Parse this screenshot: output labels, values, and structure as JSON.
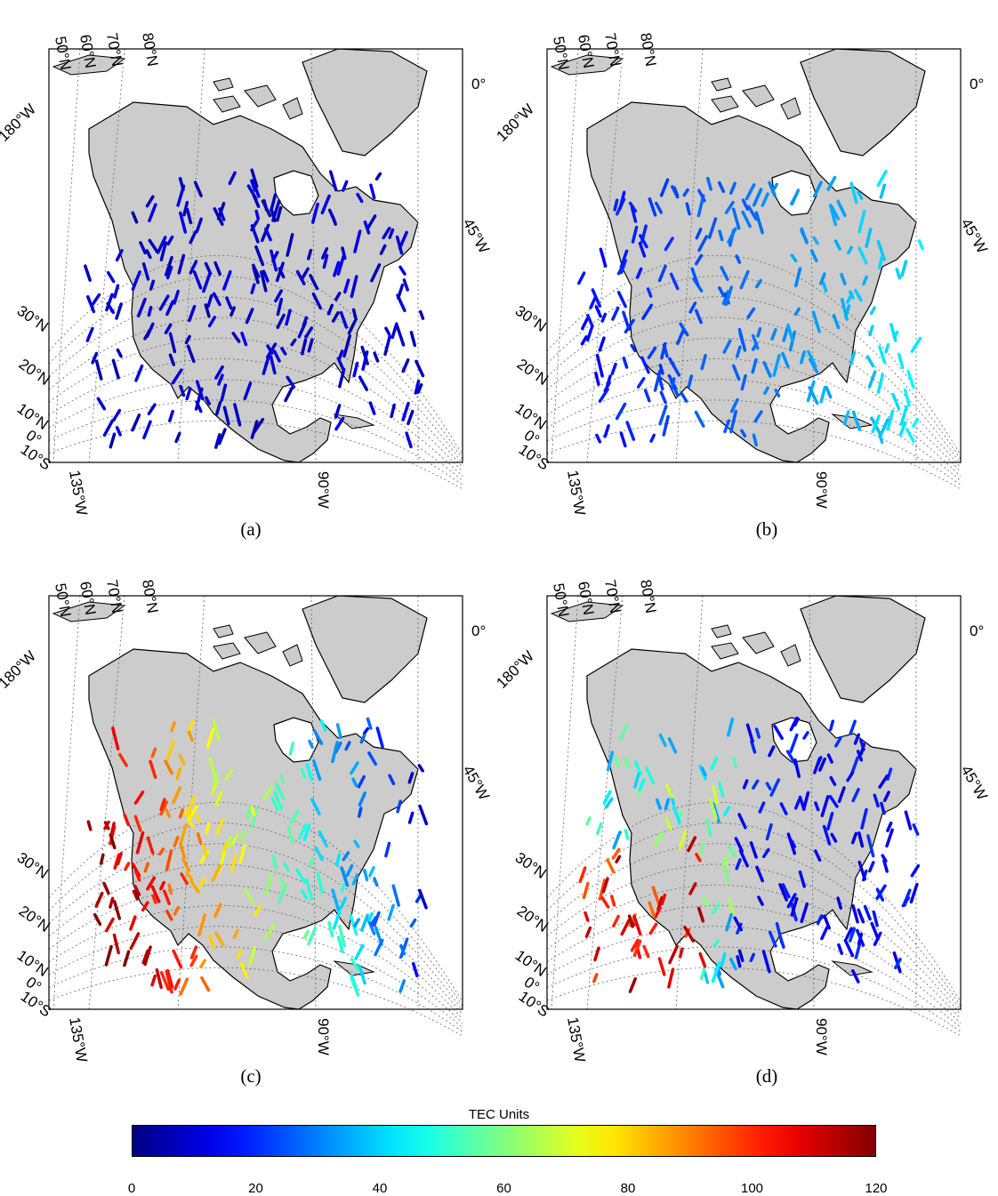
{
  "panels": [
    {
      "id": "a",
      "label": "(a)",
      "mode": "a"
    },
    {
      "id": "b",
      "label": "(b)",
      "mode": "b"
    },
    {
      "id": "c",
      "label": "(c)",
      "mode": "c"
    },
    {
      "id": "d",
      "label": "(d)",
      "mode": "d"
    }
  ],
  "grid_labels": {
    "lat_top": [
      "50°N",
      "60°N",
      "70°N",
      "80°N"
    ],
    "lat_left": [
      "30°N",
      "20°N",
      "10°N",
      "0°",
      "10°S"
    ],
    "lon_left": "180°W",
    "lon_right_top": "0°",
    "lon_right": "45°W",
    "lon_bottom_left": "135°W",
    "lon_bottom_mid": "90°W"
  },
  "colorbar": {
    "title": "TEC Units",
    "min": 0,
    "max": 120,
    "ticks": [
      "0",
      "20",
      "40",
      "60",
      "80",
      "100",
      "120"
    ],
    "colormap": "jet"
  },
  "colors": {
    "land": "#cccccc",
    "coast": "#000000",
    "grid": "#666666"
  }
}
